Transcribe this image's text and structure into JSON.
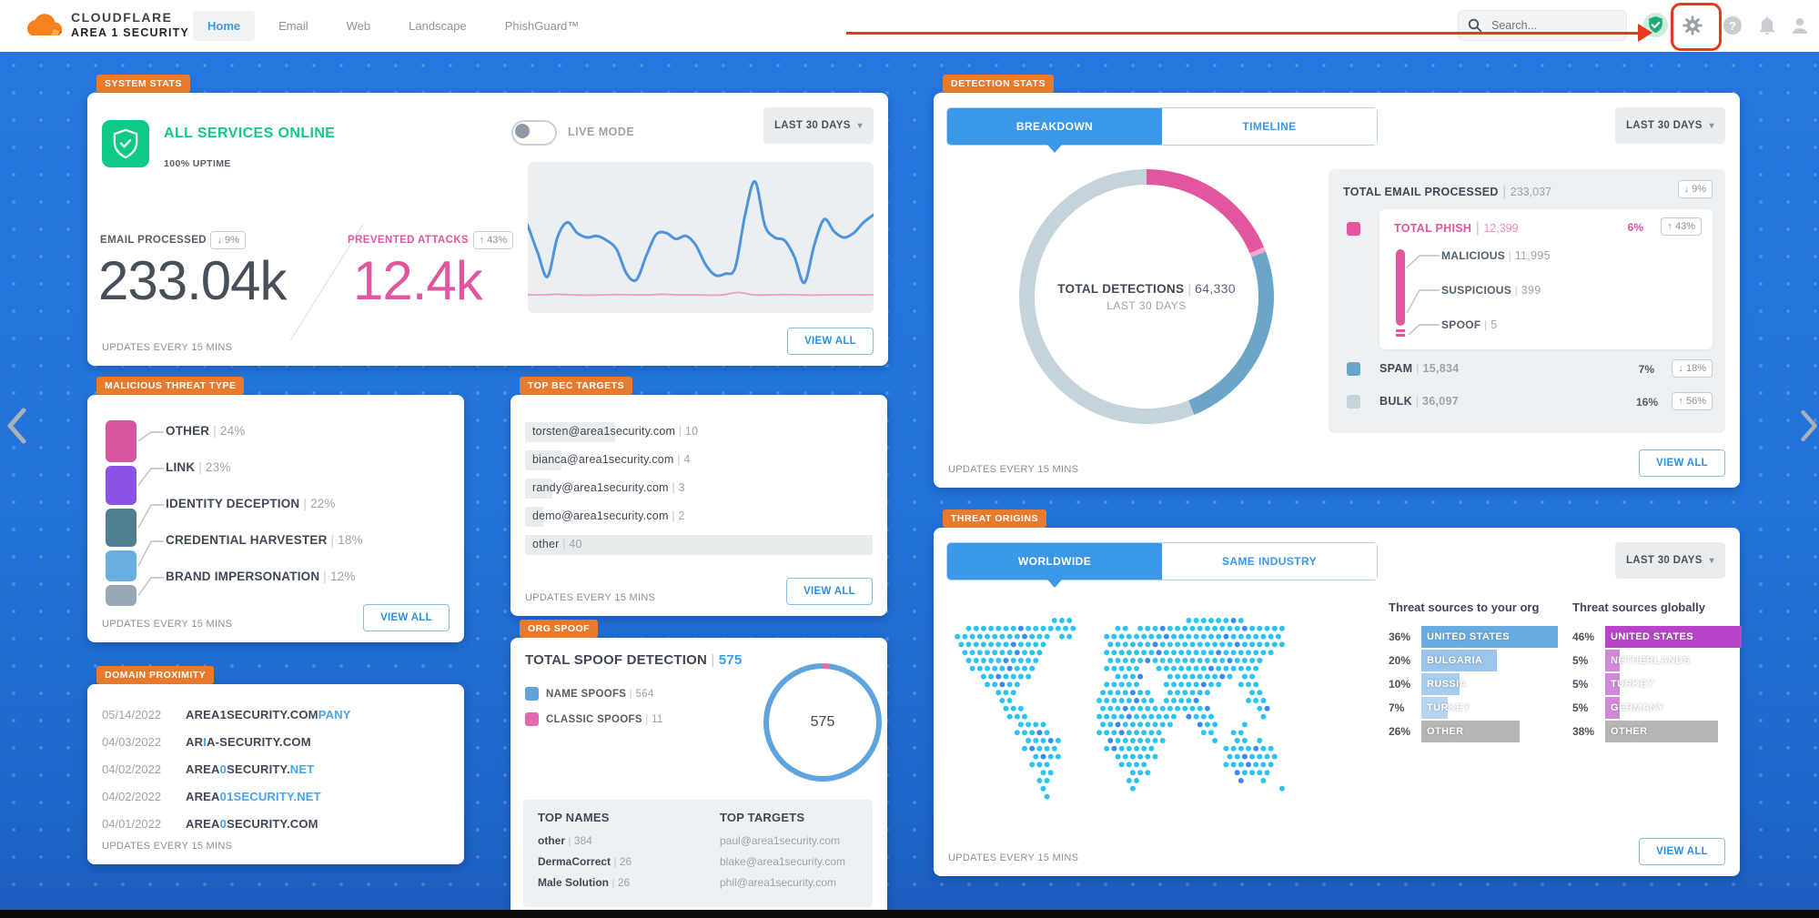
{
  "colors": {
    "background_blue": "#2173d8",
    "accent_blue": "#3b97e8",
    "badge_orange": "#e87a2d",
    "status_green": "#13c689",
    "pink": "#e2559f",
    "annotation_red": "#e63a1e",
    "spark_blue": "#4e94db",
    "spark_pink": "#ee9ec6",
    "map_dot_cyan": "#2ac4ec",
    "map_dot_blue": "#3e87f0"
  },
  "header": {
    "brand_line1": "CLOUDFLARE",
    "brand_line2": "AREA 1 SECURITY",
    "nav": [
      "Home",
      "Email",
      "Web",
      "Landscape",
      "PhishGuard™"
    ],
    "active_nav": "Home",
    "search_placeholder": "Search...",
    "icons": [
      "search-icon",
      "shield-verified-icon",
      "gear-icon",
      "help-icon",
      "bell-icon",
      "user-icon"
    ]
  },
  "system_stats": {
    "badge": "SYSTEM STATS",
    "status_text": "ALL SERVICES ONLINE",
    "uptime_text": "100% UPTIME",
    "live_mode_label": "LIVE MODE",
    "range_label": "LAST 30 DAYS",
    "email_metric": {
      "label": "EMAIL PROCESSED",
      "delta": "↓ 9%",
      "value": "233.04k"
    },
    "attacks_metric": {
      "label": "PREVENTED ATTACKS",
      "delta": "↑ 43%",
      "value": "12.4k"
    },
    "sparkline": {
      "email": [
        42,
        60,
        76,
        50,
        40,
        47,
        50,
        49,
        52,
        58,
        74,
        78,
        62,
        48,
        47,
        51,
        49,
        55,
        68,
        75,
        74,
        70,
        35,
        13,
        42,
        50,
        52,
        63,
        80,
        55,
        38,
        46,
        50,
        47,
        40,
        35
      ],
      "attacks": [
        88,
        88,
        87.6,
        88,
        88.2,
        88,
        87.8,
        88,
        88,
        87.6,
        88,
        88,
        88.2,
        88,
        86.4,
        88,
        88,
        87.8,
        88,
        88.2,
        88,
        87.9,
        88,
        88
      ]
    },
    "view_all_label": "VIEW ALL",
    "footer": "UPDATES EVERY 15 MINS"
  },
  "malicious_threat_type": {
    "badge": "MALICIOUS THREAT TYPE",
    "items": [
      {
        "label": "OTHER",
        "pct": 24,
        "color": "#d6579e"
      },
      {
        "label": "LINK",
        "pct": 23,
        "color": "#8b52e8"
      },
      {
        "label": "IDENTITY DECEPTION",
        "pct": 22,
        "color": "#527f8f"
      },
      {
        "label": "CREDENTIAL HARVESTER",
        "pct": 18,
        "color": "#6aaede"
      },
      {
        "label": "BRAND IMPERSONATION",
        "pct": 12,
        "color": "#9aa7b5"
      }
    ],
    "view_all_label": "VIEW ALL",
    "footer": "UPDATES EVERY 15 MINS"
  },
  "domain_proximity": {
    "badge": "DOMAIN PROXIMITY",
    "rows": [
      {
        "date": "05/14/2022",
        "parts": [
          {
            "t": "AREA1SECURITY.COM",
            "c": "dark"
          },
          {
            "t": "PANY",
            "c": "blue"
          }
        ]
      },
      {
        "date": "04/03/2022",
        "parts": [
          {
            "t": "AR",
            "c": "dark"
          },
          {
            "t": "I",
            "c": "blue"
          },
          {
            "t": "A-SECURITY.COM",
            "c": "dark"
          }
        ]
      },
      {
        "date": "04/02/2022",
        "parts": [
          {
            "t": "AREA",
            "c": "dark"
          },
          {
            "t": "0",
            "c": "blue"
          },
          {
            "t": "SECURITY.",
            "c": "dark"
          },
          {
            "t": "NET",
            "c": "blue"
          }
        ]
      },
      {
        "date": "04/02/2022",
        "parts": [
          {
            "t": "AREA",
            "c": "dark"
          },
          {
            "t": "01SECURITY.NET",
            "c": "blue"
          }
        ]
      },
      {
        "date": "04/01/2022",
        "parts": [
          {
            "t": "AREA",
            "c": "dark"
          },
          {
            "t": "0",
            "c": "blue"
          },
          {
            "t": "SECURITY.COM",
            "c": "dark"
          }
        ]
      }
    ],
    "footer": "UPDATES EVERY 15 MINS"
  },
  "top_bec_targets": {
    "badge": "TOP BEC TARGETS",
    "rows": [
      {
        "label": "torsten@area1security.com",
        "count": 10
      },
      {
        "label": "bianca@area1security.com",
        "count": 4
      },
      {
        "label": "randy@area1security.com",
        "count": 3
      },
      {
        "label": "demo@area1security.com",
        "count": 2
      },
      {
        "label": "other",
        "count": 40
      }
    ],
    "view_all_label": "VIEW ALL",
    "footer": "UPDATES EVERY 15 MINS"
  },
  "org_spoof": {
    "badge": "ORG SPOOF",
    "title": "TOTAL SPOOF DETECTION",
    "total": "575",
    "legend": [
      {
        "label": "NAME SPOOFS",
        "count": "564",
        "color": "#5fa4dc"
      },
      {
        "label": "CLASSIC SPOOFS",
        "count": "11",
        "color": "#e56aae"
      }
    ],
    "donut": {
      "center_value": "575",
      "segments": [
        {
          "v": 11,
          "color": "#e56aae"
        },
        {
          "v": 564,
          "color": "#5fa4dc"
        }
      ]
    },
    "top_names_title": "TOP NAMES",
    "top_names": [
      {
        "label": "other",
        "count": "384"
      },
      {
        "label": "DermaCorrect",
        "count": "26"
      },
      {
        "label": "Male Solution",
        "count": "26"
      }
    ],
    "top_targets_title": "TOP TARGETS",
    "top_targets": [
      "paul@area1security.com",
      "blake@area1security.com",
      "phil@area1security.com"
    ]
  },
  "detection_stats": {
    "badge": "DETECTION STATS",
    "tabs": [
      "BREAKDOWN",
      "TIMELINE"
    ],
    "active_tab": "BREAKDOWN",
    "range_label": "LAST 30 DAYS",
    "donut": {
      "center_label": "TOTAL DETECTIONS",
      "center_value": "64,330",
      "center_sub": "LAST 30 DAYS",
      "segments": [
        {
          "name": "MALICIOUS",
          "v": 11995,
          "color": "#e2559f"
        },
        {
          "name": "SUSPICIOUS",
          "v": 399,
          "color": "#f2a9cf"
        },
        {
          "name": "SPOOF",
          "v": 5,
          "color": "#e2559f"
        },
        {
          "name": "SPAM",
          "v": 15834,
          "color": "#6ba6c9"
        },
        {
          "name": "BULK",
          "v": 36097,
          "color": "#c5d3da"
        }
      ]
    },
    "total_email": {
      "label": "TOTAL EMAIL PROCESSED",
      "value": "233,037",
      "delta": "↓ 9%"
    },
    "phish": {
      "label": "TOTAL PHISH",
      "value": "12,399",
      "pct": "6%",
      "delta": "↑ 43%",
      "color": "#e2559f",
      "sub": [
        {
          "label": "MALICIOUS",
          "value": "11,995"
        },
        {
          "label": "SUSPICIOUS",
          "value": "399"
        },
        {
          "label": "SPOOF",
          "value": "5"
        }
      ]
    },
    "rows": [
      {
        "label": "SPAM",
        "value": "15,834",
        "pct": "7%",
        "delta": "↓ 18%",
        "color": "#6ba6c9"
      },
      {
        "label": "BULK",
        "value": "36,097",
        "pct": "16%",
        "delta": "↑ 56%",
        "color": "#c5d3da"
      }
    ],
    "view_all_label": "VIEW ALL",
    "footer": "UPDATES EVERY 15 MINS"
  },
  "threat_origins": {
    "badge": "THREAT ORIGINS",
    "tabs": [
      "WORLDWIDE",
      "SAME INDUSTRY"
    ],
    "active_tab": "WORLDWIDE",
    "range_label": "LAST 30 DAYS",
    "org_column": {
      "title": "Threat sources to your org",
      "rows": [
        {
          "pct": 36,
          "label": "UNITED STATES",
          "color": "#68ace2"
        },
        {
          "pct": 20,
          "label": "BULGARIA",
          "color": "#9cc5ec"
        },
        {
          "pct": 10,
          "label": "RUSSIA",
          "color": "#a8cdf0"
        },
        {
          "pct": 7,
          "label": "TURKEY",
          "color": "#b6d6f4"
        },
        {
          "pct": 26,
          "label": "OTHER",
          "color": "#b5b5b5"
        }
      ]
    },
    "global_column": {
      "title": "Threat sources globally",
      "rows": [
        {
          "pct": 46,
          "label": "UNITED STATES",
          "color": "#b944cb"
        },
        {
          "pct": 5,
          "label": "NETHERLANDS",
          "color": "#d08ad9"
        },
        {
          "pct": 5,
          "label": "TURKEY",
          "color": "#d08ad9"
        },
        {
          "pct": 5,
          "label": "GERMANY",
          "color": "#d08ad9"
        },
        {
          "pct": 38,
          "label": "OTHER",
          "color": "#b5b5b5"
        }
      ]
    },
    "map_rows": [
      "..............111...............11111111......",
      "..111111111111111.....11.11111111111111111111.",
      ".1111111111111.11....111111111111111111111111.",
      ".111111111111........111111111111111111111111.",
      "..11111111111........11111111111111111111111..",
      "..1111111111.........111111111111111111111....",
      "...111111111.........11111..11111111111111....",
      "....1111111...........1111...111111111.11.....",
      ".....11111...........11111...11111111..111....",
      "......111...........1111111..111111.....11....",
      ".......11...........11111111.11111......111...",
      ".......111..........111111111111111......11...",
      "........111.........11111111111.1111......1...",
      ".........1111.......1111111111...111...1......",
      ".........11111......111111111.....11..11......",
      "..........11111......11111111......1..11.1....",
      "..........11111......1111111.........1111111..",
      "...........1111.......111111.........1111111..",
      "...........111.........1111..........1111111..",
      "............11..........111...........11111...",
      "............11..........11.............1..1...",
      "............1...........1...................1.",
      ".............1................................"
    ],
    "view_all_label": "VIEW ALL",
    "footer": "UPDATES EVERY 15 MINS"
  }
}
